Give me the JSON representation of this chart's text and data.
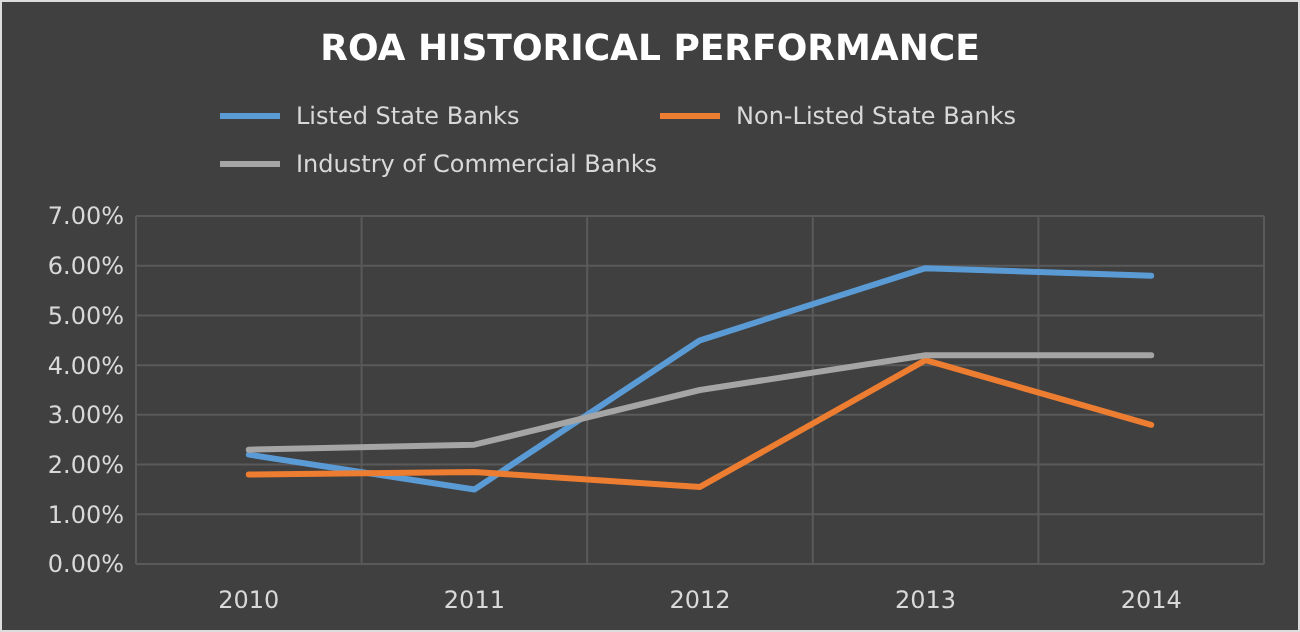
{
  "chart_data": {
    "type": "line",
    "title": "ROA HISTORICAL PERFORMANCE",
    "categories": [
      "2010",
      "2011",
      "2012",
      "2013",
      "2014"
    ],
    "series": [
      {
        "name": "Listed State Banks",
        "color": "#5b9bd5",
        "values": [
          2.2,
          1.5,
          4.5,
          5.95,
          5.8
        ]
      },
      {
        "name": "Non-Listed State Banks",
        "color": "#ed7d31",
        "values": [
          1.8,
          1.85,
          1.55,
          4.1,
          2.8
        ]
      },
      {
        "name": "Industry of Commercial Banks",
        "color": "#a5a5a5",
        "values": [
          2.3,
          2.4,
          3.5,
          4.2,
          4.2
        ]
      }
    ],
    "ylim": [
      0,
      7
    ],
    "yticks": [
      {
        "value": 0,
        "label": "0.00%"
      },
      {
        "value": 1,
        "label": "1.00%"
      },
      {
        "value": 2,
        "label": "2.00%"
      },
      {
        "value": 3,
        "label": "3.00%"
      },
      {
        "value": 4,
        "label": "4.00%"
      },
      {
        "value": 5,
        "label": "5.00%"
      },
      {
        "value": 6,
        "label": "6.00%"
      },
      {
        "value": 7,
        "label": "7.00%"
      }
    ],
    "grid": true,
    "legend": "top",
    "marker": "none",
    "line_style": "solid"
  }
}
